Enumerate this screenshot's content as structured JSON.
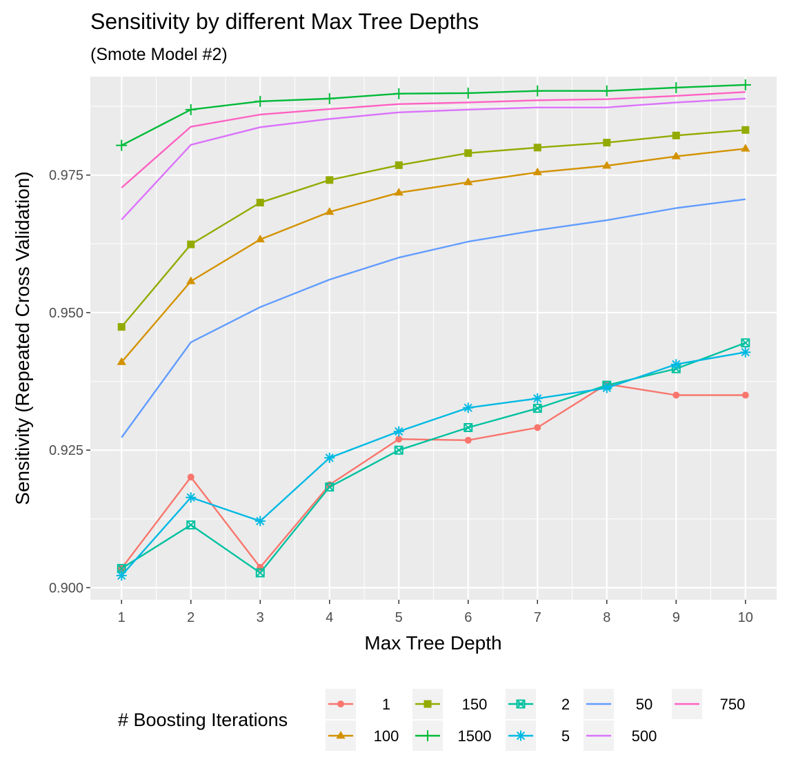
{
  "chart_data": {
    "type": "line",
    "title": "Sensitivity by different Max Tree Depths",
    "subtitle": "(Smote Model #2)",
    "xlabel": "Max Tree Depth",
    "ylabel": "Sensitivity (Repeated Cross Validation)",
    "x": [
      1,
      2,
      3,
      4,
      5,
      6,
      7,
      8,
      9,
      10
    ],
    "x_ticks": [
      "1",
      "2",
      "3",
      "4",
      "5",
      "6",
      "7",
      "8",
      "9",
      "10"
    ],
    "xlim": [
      0.55,
      10.45
    ],
    "ylim": [
      0.8978,
      0.9929
    ],
    "y_ticks": [
      0.9,
      0.925,
      0.95,
      0.975
    ],
    "y_tick_labels": [
      "0.900",
      "0.925",
      "0.950",
      "0.975"
    ],
    "grid": true,
    "legend": {
      "title": "# Boosting Iterations",
      "position": "bottom"
    },
    "series": [
      {
        "name": "1",
        "color": "#F8766D",
        "marker": "circle",
        "values": [
          0.9035,
          0.9201,
          0.9037,
          0.9187,
          0.927,
          0.9268,
          0.9291,
          0.937,
          0.935,
          0.935
        ]
      },
      {
        "name": "100",
        "color": "#D39200",
        "marker": "triangle",
        "values": [
          0.941,
          0.9557,
          0.9633,
          0.9683,
          0.9718,
          0.9737,
          0.9755,
          0.9767,
          0.9784,
          0.9798
        ]
      },
      {
        "name": "150",
        "color": "#93AA00",
        "marker": "square",
        "values": [
          0.9474,
          0.9624,
          0.97,
          0.9741,
          0.9768,
          0.979,
          0.98,
          0.9809,
          0.9822,
          0.9832
        ]
      },
      {
        "name": "1500",
        "color": "#00BA38",
        "marker": "plus",
        "values": [
          0.9804,
          0.9869,
          0.9884,
          0.9889,
          0.9898,
          0.9899,
          0.9903,
          0.9903,
          0.9909,
          0.9914
        ]
      },
      {
        "name": "2",
        "color": "#00C19F",
        "marker": "square-x",
        "values": [
          0.9035,
          0.9114,
          0.9027,
          0.9183,
          0.925,
          0.9291,
          0.9326,
          0.9368,
          0.9398,
          0.9445
        ]
      },
      {
        "name": "5",
        "color": "#00B9E3",
        "marker": "asterisk",
        "values": [
          0.9022,
          0.9164,
          0.9121,
          0.9236,
          0.9284,
          0.9327,
          0.9344,
          0.9363,
          0.9406,
          0.9428
        ]
      },
      {
        "name": "50",
        "color": "#619CFF",
        "marker": "none",
        "values": [
          0.9273,
          0.9446,
          0.951,
          0.956,
          0.96,
          0.9629,
          0.965,
          0.9668,
          0.969,
          0.9706
        ]
      },
      {
        "name": "500",
        "color": "#DB72FB",
        "marker": "none",
        "values": [
          0.9669,
          0.9805,
          0.9837,
          0.9852,
          0.9864,
          0.9869,
          0.9873,
          0.9873,
          0.9882,
          0.9889
        ]
      },
      {
        "name": "750",
        "color": "#FF61C3",
        "marker": "none",
        "values": [
          0.9727,
          0.9838,
          0.986,
          0.987,
          0.9879,
          0.9882,
          0.9886,
          0.9888,
          0.9894,
          0.9901
        ]
      }
    ]
  }
}
